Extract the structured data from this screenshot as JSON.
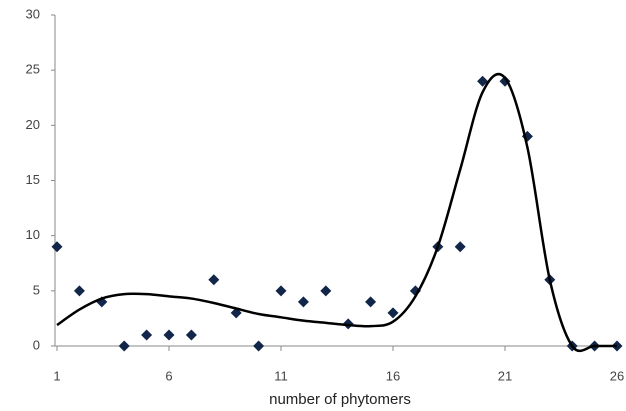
{
  "chart_data": {
    "type": "scatter",
    "x_label": "number of phytomers",
    "x": [
      1,
      2,
      3,
      4,
      5,
      6,
      7,
      8,
      9,
      10,
      11,
      12,
      13,
      14,
      15,
      16,
      17,
      18,
      19,
      20,
      21,
      22,
      23,
      24,
      25,
      26
    ],
    "series": [
      {
        "mode": "markers",
        "color": "#12264a",
        "values": [
          9,
          5,
          4,
          0,
          1,
          1,
          1,
          6,
          3,
          0,
          5,
          4,
          5,
          2,
          4,
          3,
          5,
          9,
          9,
          24,
          24,
          19,
          6,
          0,
          0,
          0
        ]
      },
      {
        "mode": "line",
        "color": "#000000",
        "values": [
          1.9,
          3.3,
          4.3,
          4.7,
          4.7,
          4.5,
          4.3,
          3.9,
          3.4,
          2.9,
          2.6,
          2.3,
          2.1,
          1.9,
          1.8,
          2.2,
          4.5,
          9,
          16,
          23,
          24.3,
          18,
          6,
          0,
          0,
          0
        ]
      }
    ],
    "xlim": [
      1,
      26
    ],
    "xticks": [
      1,
      6,
      11,
      16,
      21,
      26
    ],
    "ylim": [
      0,
      30
    ],
    "yticks": [
      0,
      5,
      10,
      15,
      20,
      25,
      30
    ],
    "grid": false
  }
}
